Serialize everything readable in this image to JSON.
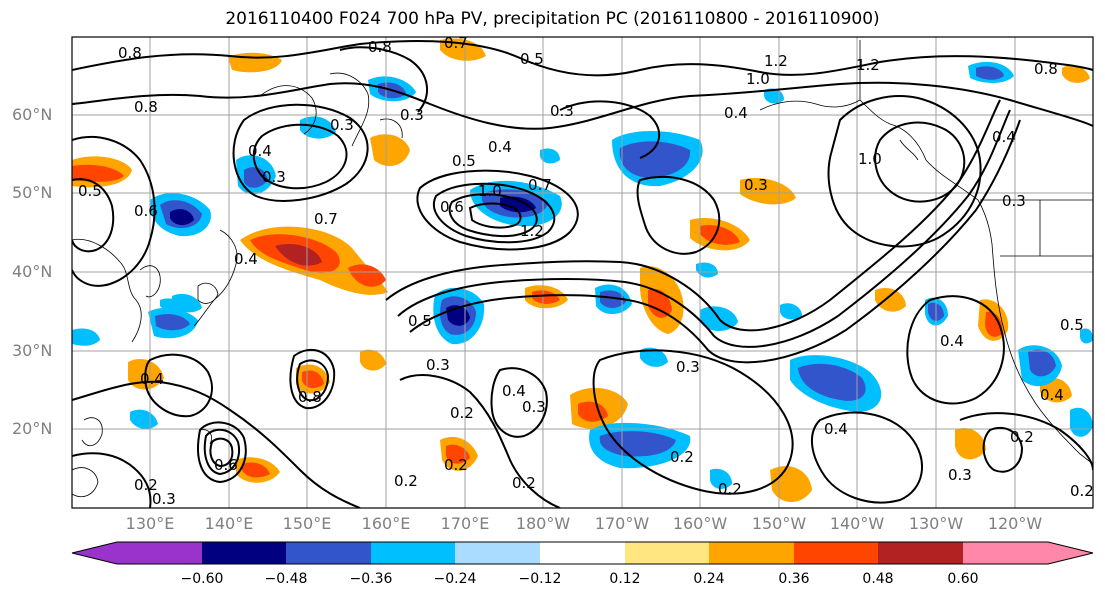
{
  "title": "2016110400 F024 700 hPa PV, precipitation PC (2016110800 - 2016110900)",
  "latitude_labels": [
    "60°N",
    "50°N",
    "40°N",
    "30°N",
    "20°N"
  ],
  "longitude_labels": [
    "130°E",
    "140°E",
    "150°E",
    "160°E",
    "170°E",
    "180°W",
    "170°W",
    "160°W",
    "150°W",
    "140°W",
    "130°W",
    "120°W"
  ],
  "colorbar": {
    "colors": [
      "#9933cc",
      "#000080",
      "#3355cc",
      "#00bfff",
      "#aadcff",
      "#ffffff",
      "#ffe680",
      "#ffa500",
      "#ff4500",
      "#b22222",
      "#ff88aa"
    ],
    "tick_labels": [
      "−0.60",
      "−0.48",
      "−0.36",
      "−0.24",
      "−0.12",
      "0.12",
      "0.24",
      "0.36",
      "0.48",
      "0.60"
    ]
  },
  "contour_labels": [
    "0.8",
    "0.8",
    "0.8",
    "0.7",
    "0.5",
    "0.3",
    "0.3",
    "0.4",
    "0.4",
    "0.3",
    "0.5",
    "0.6",
    "0.7",
    "1.0",
    "1.2",
    "0.7",
    "1.0",
    "1.2",
    "1.0",
    "1.2",
    "0.8",
    "0.4",
    "0.3",
    "0.5",
    "0.3",
    "0.4",
    "0.3",
    "0.2",
    "0.3",
    "0.2",
    "0.2",
    "0.2",
    "0.2",
    "0.3",
    "0.4",
    "0.8",
    "0.6",
    "0.6",
    "0.4",
    "0.2",
    "0.3",
    "0.4",
    "0.3",
    "0.4",
    "0.2",
    "0.5",
    "0.4",
    "0.2",
    "0.3",
    "0.2",
    "0.4",
    "0.5"
  ],
  "palette": {
    "contour": "#000000",
    "grid": "#a0a0a0",
    "coast": "#000000"
  }
}
